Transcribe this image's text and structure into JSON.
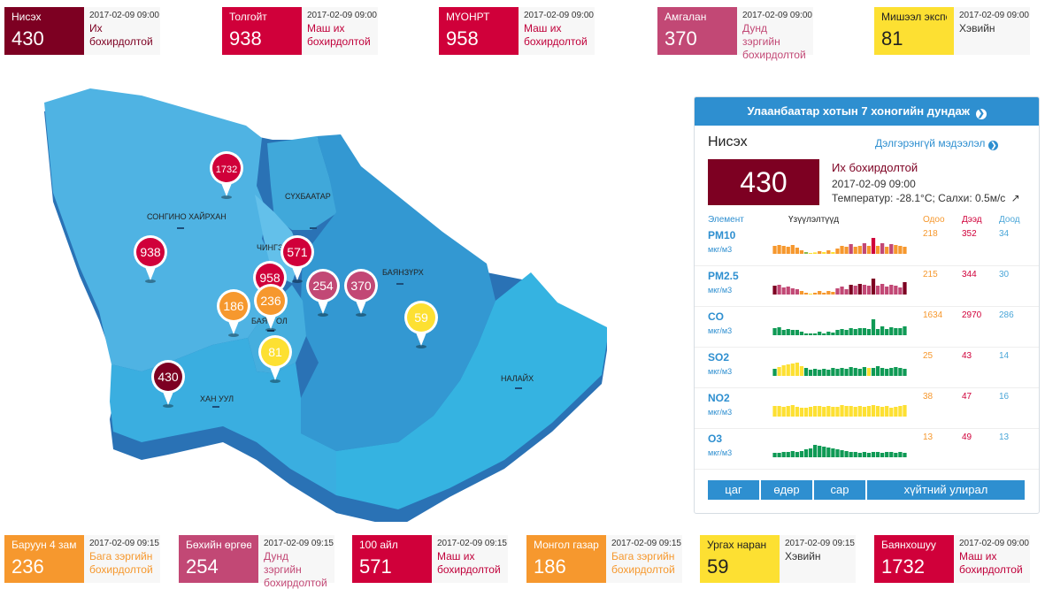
{
  "colors": {
    "hazardous": "#7d0022",
    "very_unhealthy": "#d0003a",
    "unhealthy": "#c24875",
    "moderate": "#f6982e",
    "good": "#fde032",
    "panel_blue": "#2e8fd0"
  },
  "top_cards": [
    {
      "name": "Нисэх",
      "value": "430",
      "time": "2017-02-09 09:00",
      "status": "Их бохирдолтой",
      "color": "#7d0022",
      "status_color": "#7d0022",
      "name_color": "#ffffff"
    },
    {
      "name": "Толгойт",
      "value": "938",
      "time": "2017-02-09 09:00",
      "status": "Маш их бохирдолтой",
      "color": "#d0003a",
      "status_color": "#c0003a",
      "name_color": "#ffffff"
    },
    {
      "name": "МҮОНРТ",
      "value": "958",
      "time": "2017-02-09 09:00",
      "status": "Маш их бохирдолтой",
      "color": "#d0003a",
      "status_color": "#c0003a",
      "name_color": "#ffffff"
    },
    {
      "name": "Амгалан",
      "value": "370",
      "time": "2017-02-09 09:00",
      "status": "Дунд зэргийн бохирдолтой",
      "color": "#c24875",
      "status_color": "#c24875",
      "name_color": "#ffffff"
    },
    {
      "name": "Мишээл экспо",
      "value": "81",
      "time": "2017-02-09 09:00",
      "status": "Хэвийн",
      "color": "#fde032",
      "status_color": "#333333",
      "name_color": "#222222"
    }
  ],
  "bottom_cards": [
    {
      "name": "Баруун 4 зам",
      "value": "236",
      "time": "2017-02-09 09:15",
      "status": "Бага зэргийн бохирдолтой",
      "color": "#f6982e",
      "status_color": "#f6982e",
      "name_color": "#ffffff"
    },
    {
      "name": "Бөхийн өргөө",
      "value": "254",
      "time": "2017-02-09 09:15",
      "status": "Дунд зэргийн бохирдолтой",
      "color": "#c24875",
      "status_color": "#c24875",
      "name_color": "#ffffff"
    },
    {
      "name": "100 айл",
      "value": "571",
      "time": "2017-02-09 09:15",
      "status": "Маш их бохирдолтой",
      "color": "#d0003a",
      "status_color": "#c0003a",
      "name_color": "#ffffff"
    },
    {
      "name": "Монгол газар",
      "value": "186",
      "time": "2017-02-09 09:15",
      "status": "Бага зэргийн бохирдолтой",
      "color": "#f6982e",
      "status_color": "#f6982e",
      "name_color": "#ffffff"
    },
    {
      "name": "Ургах наран",
      "value": "59",
      "time": "2017-02-09 09:15",
      "status": "Хэвийн",
      "color": "#fde032",
      "status_color": "#333333",
      "name_color": "#222222"
    },
    {
      "name": "Баянхошуу",
      "value": "1732",
      "time": "2017-02-09 09:00",
      "status": "Маш их бохирдолтой",
      "color": "#d0003a",
      "status_color": "#c0003a",
      "name_color": "#ffffff"
    }
  ],
  "map": {
    "districts": [
      "СОНГИНО ХАЙРХАН",
      "СҮХБААТАР",
      "ЧИНГЭ",
      "БАЯНЗҮРХ",
      "БАЯ",
      "ОЛ",
      "ХАН УУЛ",
      "НАЛАЙХ"
    ],
    "pins": [
      {
        "value": "1732",
        "color": "#d0003a"
      },
      {
        "value": "938",
        "color": "#d0003a"
      },
      {
        "value": "571",
        "color": "#d0003a"
      },
      {
        "value": "958",
        "color": "#d0003a"
      },
      {
        "value": "236",
        "color": "#f6982e"
      },
      {
        "value": "186",
        "color": "#f6982e"
      },
      {
        "value": "254",
        "color": "#c24875"
      },
      {
        "value": "370",
        "color": "#c24875"
      },
      {
        "value": "59",
        "color": "#fde032"
      },
      {
        "value": "81",
        "color": "#fde032"
      },
      {
        "value": "430",
        "color": "#7d0022"
      }
    ]
  },
  "panel": {
    "header": "Улаанбаатар хотын 7 хоногийн дундаж",
    "station": "Нисэх",
    "more_link": "Дэлгэрэнгүй мэдээлэл",
    "aqi": "430",
    "status": "Их бохирдолтой",
    "time": "2017-02-09 09:00",
    "weather": "Температур: -28.1°C; Салхи: 0.5м/с",
    "columns": {
      "element": "Элемент",
      "indicators": "Үзүүлэлтүүд",
      "now": "Одоо",
      "max": "Дээд",
      "min": "Доод"
    },
    "pollutants": [
      {
        "name": "PM10",
        "unit": "мкг/м3",
        "now": "218",
        "max": "352",
        "min": "34",
        "bars": [
          0.45,
          0.5,
          0.45,
          0.4,
          0.5,
          0.35,
          0.2,
          0.1,
          0.05,
          0.08,
          0.15,
          0.1,
          0.2,
          0.1,
          0.3,
          0.45,
          0.4,
          0.55,
          0.4,
          0.45,
          0.6,
          0.45,
          0.9,
          0.45,
          0.6,
          0.4,
          0.55,
          0.5,
          0.45,
          0.4
        ],
        "bar_colors": [
          "#f6982e",
          "#f6982e",
          "#f6982e",
          "#f6982e",
          "#f6982e",
          "#f6982e",
          "#f6982e",
          "#8ab94a",
          "#fde032",
          "#fde032",
          "#f6982e",
          "#fde032",
          "#f6982e",
          "#fde032",
          "#f6982e",
          "#f6982e",
          "#f6982e",
          "#c24875",
          "#f6982e",
          "#f6982e",
          "#c24875",
          "#f6982e",
          "#d0003a",
          "#f6982e",
          "#c24875",
          "#f6982e",
          "#c24875",
          "#f6982e",
          "#f6982e",
          "#f6982e"
        ]
      },
      {
        "name": "PM2.5",
        "unit": "мкг/м3",
        "now": "215",
        "max": "344",
        "min": "30",
        "bars": [
          0.5,
          0.55,
          0.4,
          0.45,
          0.35,
          0.3,
          0.2,
          0.1,
          0.05,
          0.1,
          0.2,
          0.1,
          0.2,
          0.15,
          0.35,
          0.45,
          0.3,
          0.55,
          0.5,
          0.6,
          0.55,
          0.5,
          0.9,
          0.5,
          0.6,
          0.45,
          0.55,
          0.5,
          0.4,
          0.7
        ],
        "bar_colors": [
          "#7d0022",
          "#c24875",
          "#c24875",
          "#c24875",
          "#c24875",
          "#c24875",
          "#f6982e",
          "#f6982e",
          "#fde032",
          "#f6982e",
          "#f6982e",
          "#f6982e",
          "#f6982e",
          "#f6982e",
          "#c24875",
          "#c24875",
          "#c24875",
          "#7d0022",
          "#c24875",
          "#7d0022",
          "#c24875",
          "#c24875",
          "#7d0022",
          "#c24875",
          "#c24875",
          "#c24875",
          "#c24875",
          "#c24875",
          "#c24875",
          "#7d0022"
        ]
      },
      {
        "name": "CO",
        "unit": "мкг/м3",
        "now": "1634",
        "max": "2970",
        "min": "286",
        "bars": [
          0.4,
          0.45,
          0.3,
          0.35,
          0.3,
          0.3,
          0.2,
          0.1,
          0.1,
          0.1,
          0.2,
          0.1,
          0.2,
          0.15,
          0.3,
          0.35,
          0.3,
          0.4,
          0.35,
          0.4,
          0.4,
          0.35,
          0.9,
          0.35,
          0.5,
          0.35,
          0.45,
          0.4,
          0.4,
          0.5
        ],
        "bar_colors": [
          "#0f9a55",
          "#0f9a55",
          "#0f9a55",
          "#0f9a55",
          "#0f9a55",
          "#0f9a55",
          "#0f9a55",
          "#0f9a55",
          "#0f9a55",
          "#0f9a55",
          "#0f9a55",
          "#0f9a55",
          "#0f9a55",
          "#0f9a55",
          "#0f9a55",
          "#0f9a55",
          "#0f9a55",
          "#0f9a55",
          "#0f9a55",
          "#0f9a55",
          "#0f9a55",
          "#0f9a55",
          "#0f9a55",
          "#0f9a55",
          "#0f9a55",
          "#0f9a55",
          "#0f9a55",
          "#0f9a55",
          "#0f9a55",
          "#0f9a55"
        ]
      },
      {
        "name": "SO2",
        "unit": "мкг/м3",
        "now": "25",
        "max": "43",
        "min": "14",
        "bars": [
          0.4,
          0.5,
          0.6,
          0.65,
          0.7,
          0.75,
          0.55,
          0.45,
          0.35,
          0.4,
          0.35,
          0.4,
          0.35,
          0.45,
          0.4,
          0.45,
          0.4,
          0.5,
          0.45,
          0.4,
          0.5,
          0.45,
          0.45,
          0.55,
          0.45,
          0.4,
          0.45,
          0.5,
          0.45,
          0.4
        ],
        "bar_colors": [
          "#0f9a55",
          "#fde032",
          "#fde032",
          "#fde032",
          "#fde032",
          "#fde032",
          "#fde032",
          "#0f9a55",
          "#0f9a55",
          "#0f9a55",
          "#0f9a55",
          "#0f9a55",
          "#0f9a55",
          "#0f9a55",
          "#0f9a55",
          "#0f9a55",
          "#0f9a55",
          "#0f9a55",
          "#0f9a55",
          "#0f9a55",
          "#0f9a55",
          "#fde032",
          "#0f9a55",
          "#0f9a55",
          "#0f9a55",
          "#0f9a55",
          "#0f9a55",
          "#0f9a55",
          "#0f9a55",
          "#0f9a55"
        ]
      },
      {
        "name": "NO2",
        "unit": "мкг/м3",
        "now": "38",
        "max": "47",
        "min": "16",
        "bars": [
          0.6,
          0.6,
          0.55,
          0.6,
          0.65,
          0.55,
          0.5,
          0.5,
          0.55,
          0.6,
          0.6,
          0.55,
          0.6,
          0.55,
          0.55,
          0.65,
          0.6,
          0.6,
          0.55,
          0.6,
          0.55,
          0.6,
          0.65,
          0.6,
          0.55,
          0.6,
          0.5,
          0.55,
          0.6,
          0.65
        ],
        "bar_colors": [
          "#fde032",
          "#fde032",
          "#fde032",
          "#fde032",
          "#fde032",
          "#fde032",
          "#fde032",
          "#fde032",
          "#fde032",
          "#fde032",
          "#fde032",
          "#fde032",
          "#fde032",
          "#fde032",
          "#fde032",
          "#fde032",
          "#fde032",
          "#fde032",
          "#fde032",
          "#fde032",
          "#fde032",
          "#fde032",
          "#fde032",
          "#fde032",
          "#fde032",
          "#fde032",
          "#fde032",
          "#fde032",
          "#fde032",
          "#fde032"
        ]
      },
      {
        "name": "O3",
        "unit": "мкг/м3",
        "now": "13",
        "max": "49",
        "min": "13",
        "bars": [
          0.25,
          0.25,
          0.3,
          0.3,
          0.35,
          0.3,
          0.35,
          0.45,
          0.5,
          0.7,
          0.65,
          0.6,
          0.55,
          0.5,
          0.45,
          0.4,
          0.35,
          0.3,
          0.3,
          0.25,
          0.3,
          0.25,
          0.3,
          0.3,
          0.25,
          0.3,
          0.3,
          0.25,
          0.3,
          0.25
        ],
        "bar_colors": [
          "#0f9a55",
          "#0f9a55",
          "#0f9a55",
          "#0f9a55",
          "#0f9a55",
          "#0f9a55",
          "#0f9a55",
          "#0f9a55",
          "#0f9a55",
          "#0f9a55",
          "#0f9a55",
          "#0f9a55",
          "#0f9a55",
          "#0f9a55",
          "#0f9a55",
          "#0f9a55",
          "#0f9a55",
          "#0f9a55",
          "#0f9a55",
          "#0f9a55",
          "#0f9a55",
          "#0f9a55",
          "#0f9a55",
          "#0f9a55",
          "#0f9a55",
          "#0f9a55",
          "#0f9a55",
          "#0f9a55",
          "#0f9a55",
          "#0f9a55"
        ]
      }
    ],
    "tabs": [
      "цаг",
      "өдөр",
      "сар",
      "хүйтний улирал"
    ]
  }
}
